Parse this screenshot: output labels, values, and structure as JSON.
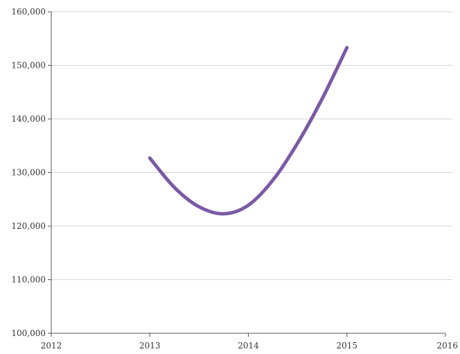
{
  "chart_data": {
    "type": "line",
    "title": "",
    "xlabel": "",
    "ylabel": "",
    "xlim": [
      2012,
      2016
    ],
    "ylim": [
      100000,
      160000
    ],
    "x_ticks": [
      2012,
      2013,
      2014,
      2015,
      2016
    ],
    "x_tick_labels": [
      "2012",
      "2013",
      "2014",
      "2015",
      "2016"
    ],
    "y_ticks": [
      100000,
      110000,
      120000,
      130000,
      140000,
      150000,
      160000
    ],
    "y_tick_labels": [
      "100,000",
      "110,000",
      "120,000",
      "130,000",
      "140,000",
      "150,000",
      "160,000"
    ],
    "grid": "horizontal",
    "legend": "none",
    "series": [
      {
        "color": "#7a5aa6",
        "smooth": true,
        "x": [
          2013,
          2013.25,
          2013.5,
          2013.75,
          2014,
          2014.25,
          2014.5,
          2014.75,
          2015
        ],
        "y": [
          132700,
          127200,
          123600,
          122300,
          123900,
          128600,
          135500,
          143800,
          153300
        ]
      }
    ]
  }
}
